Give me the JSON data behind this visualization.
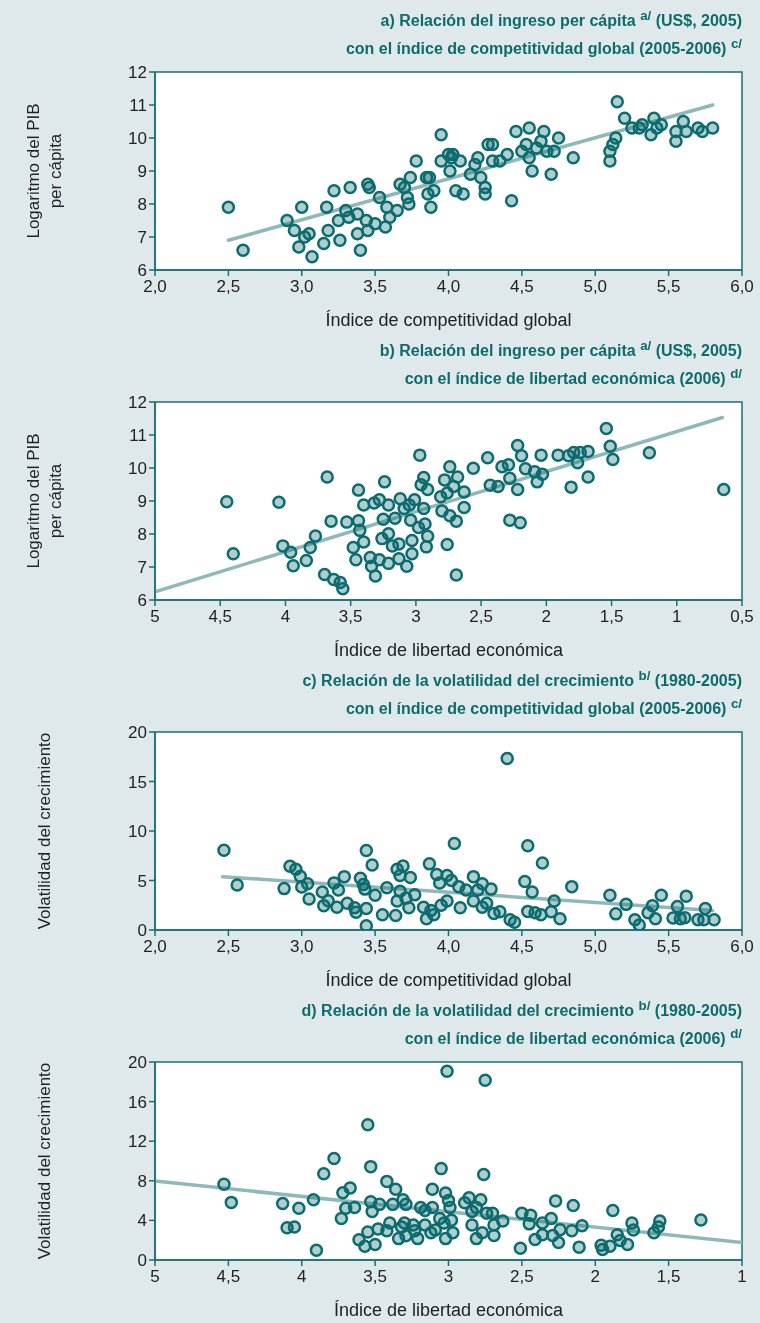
{
  "chart_data": [
    {
      "type": "scatter",
      "title": "a) Relación del ingreso per cápita $^{a/}$ (US$, 2005)\ncon el índice de competitividad global (2005-2006) $^{c/}$",
      "xlabel": "Índice de competitividad global",
      "ylabel": "Logaritmo del PIB\nper cápita",
      "xlim": [
        2,
        6
      ],
      "ylim": [
        6,
        12
      ],
      "xticks": [
        {
          "value": 2,
          "label": "2,0"
        },
        {
          "value": 2.5,
          "label": "2,5"
        },
        {
          "value": 3,
          "label": "3,0"
        },
        {
          "value": 3.5,
          "label": "3,5"
        },
        {
          "value": 4,
          "label": "4,0"
        },
        {
          "value": 4.5,
          "label": "4,5"
        },
        {
          "value": 5,
          "label": "5,0"
        },
        {
          "value": 5.5,
          "label": "5,5"
        },
        {
          "value": 6,
          "label": "6,0"
        }
      ],
      "yticks": [
        6,
        7,
        8,
        9,
        10,
        11,
        12
      ],
      "series": [
        {
          "marker": "circle",
          "color": "#0b6b6e",
          "x": [
            2.5,
            2.6,
            2.9,
            2.95,
            3.0,
            2.98,
            3.02,
            3.05,
            3.07,
            3.15,
            3.17,
            3.18,
            3.22,
            3.25,
            3.26,
            3.3,
            3.32,
            3.33,
            3.38,
            3.4,
            3.38,
            3.45,
            3.46,
            3.44,
            3.45,
            3.5,
            3.53,
            3.57,
            3.58,
            3.6,
            3.65,
            3.67,
            3.7,
            3.72,
            3.74,
            3.73,
            3.78,
            3.85,
            3.87,
            3.86,
            3.88,
            3.9,
            3.95,
            3.95,
            4.0,
            4.01,
            4.02,
            4.03,
            4.05,
            4.08,
            4.1,
            4.15,
            4.18,
            4.2,
            4.22,
            4.25,
            4.25,
            4.27,
            4.3,
            4.3,
            4.35,
            4.4,
            4.43,
            4.46,
            4.5,
            4.53,
            4.55,
            4.55,
            4.57,
            4.6,
            4.63,
            4.65,
            4.67,
            4.7,
            4.72,
            4.75,
            4.85,
            5.1,
            5.1,
            5.12,
            5.14,
            5.15,
            5.2,
            5.25,
            5.3,
            5.32,
            5.38,
            5.4,
            5.42,
            5.45,
            5.55,
            5.55,
            5.6,
            5.62,
            5.7,
            5.73,
            5.8
          ],
          "values": [
            7.9,
            6.6,
            7.5,
            7.2,
            7.9,
            6.7,
            7.0,
            7.1,
            6.4,
            6.8,
            7.9,
            7.2,
            8.4,
            7.5,
            6.9,
            7.8,
            7.6,
            8.5,
            7.1,
            6.6,
            7.7,
            8.6,
            8.5,
            7.5,
            7.2,
            7.4,
            8.2,
            7.3,
            7.9,
            7.6,
            7.8,
            8.6,
            8.5,
            8.2,
            8.8,
            8.0,
            9.3,
            8.8,
            8.8,
            8.3,
            7.9,
            8.4,
            10.1,
            9.3,
            9.5,
            9.0,
            9.4,
            9.5,
            8.4,
            9.3,
            8.3,
            8.9,
            9.2,
            9.4,
            8.8,
            8.5,
            8.3,
            9.8,
            9.8,
            9.3,
            9.3,
            9.5,
            8.1,
            10.2,
            9.6,
            9.8,
            10.3,
            9.4,
            9.0,
            9.7,
            9.9,
            10.2,
            9.6,
            8.9,
            9.6,
            10.0,
            9.4,
            9.3,
            9.6,
            9.8,
            10.0,
            11.1,
            10.6,
            10.3,
            10.3,
            10.4,
            10.1,
            10.6,
            10.3,
            10.4,
            10.2,
            9.9,
            10.5,
            10.2,
            10.3,
            10.2,
            10.3
          ]
        },
        {
          "type": "line",
          "color": "#8fb9b9",
          "x": [
            2.5,
            5.8
          ],
          "values": [
            6.9,
            11.0
          ]
        }
      ]
    },
    {
      "type": "scatter",
      "title": "b) Relación del ingreso per cápita $^{a/}$ (US$, 2005)\ncon el índice de libertad económica (2006) $^{d/}$",
      "xlabel": "Índice de libertad económica",
      "ylabel": "Logaritmo del PIB\nper cápita",
      "xlim": [
        5,
        0.5
      ],
      "ylim": [
        6,
        12
      ],
      "xticks": [
        5,
        {
          "value": 4.5,
          "label": "4,5"
        },
        4,
        {
          "value": 3.5,
          "label": "3,5"
        },
        3,
        {
          "value": 2.5,
          "label": "2,5"
        },
        2,
        {
          "value": 1.5,
          "label": "1,5"
        },
        1,
        {
          "value": 0.5,
          "label": "0,5"
        }
      ],
      "yticks": [
        6,
        7,
        8,
        9,
        10,
        11,
        12
      ],
      "series": [
        {
          "marker": "circle",
          "color": "#0b6b6e",
          "x": [
            4.45,
            4.4,
            4.05,
            4.02,
            3.96,
            3.94,
            3.84,
            3.81,
            3.77,
            3.7,
            3.68,
            3.65,
            3.63,
            3.58,
            3.56,
            3.53,
            3.48,
            3.46,
            3.44,
            3.44,
            3.43,
            3.4,
            3.4,
            3.35,
            3.34,
            3.31,
            3.32,
            3.28,
            3.28,
            3.25,
            3.24,
            3.21,
            3.21,
            3.26,
            3.21,
            3.18,
            3.16,
            3.13,
            3.13,
            3.12,
            3.09,
            3.07,
            3.05,
            3.04,
            3.03,
            3.03,
            3.01,
            2.98,
            2.97,
            2.96,
            2.94,
            2.94,
            2.93,
            2.92,
            2.91,
            2.91,
            2.81,
            2.8,
            2.78,
            2.76,
            2.76,
            2.74,
            2.74,
            2.71,
            2.69,
            2.69,
            2.68,
            2.63,
            2.63,
            2.56,
            2.45,
            2.43,
            2.37,
            2.34,
            2.29,
            2.28,
            2.28,
            2.22,
            2.22,
            2.2,
            2.19,
            2.16,
            2.09,
            2.07,
            2.04,
            2.03,
            1.91,
            1.83,
            1.81,
            1.79,
            1.76,
            1.74,
            1.68,
            1.68,
            1.54,
            1.51,
            1.49,
            1.21,
            0.64
          ],
          "values": [
            8.98,
            7.4,
            8.96,
            7.64,
            7.45,
            7.04,
            7.2,
            7.59,
            7.94,
            6.77,
            9.73,
            8.39,
            6.62,
            6.53,
            6.34,
            8.36,
            7.59,
            7.22,
            8.4,
            9.33,
            8.11,
            7.76,
            8.88,
            7.29,
            7.02,
            6.73,
            8.94,
            9.04,
            7.22,
            8.45,
            9.58,
            8.88,
            8.01,
            7.86,
            7.11,
            7.64,
            8.48,
            7.25,
            7.7,
            9.07,
            8.77,
            7.02,
            8.88,
            8.42,
            7.4,
            7.8,
            9.04,
            8.2,
            10.39,
            9.49,
            9.71,
            8.77,
            8.3,
            7.61,
            9.35,
            7.93,
            9.13,
            8.7,
            9.64,
            7.68,
            9.24,
            10.04,
            8.55,
            9.44,
            8.39,
            6.76,
            9.73,
            8.8,
            9.27,
            9.99,
            10.31,
            9.48,
            9.44,
            10.04,
            10.1,
            8.42,
            9.69,
            10.68,
            9.35,
            8.34,
            10.37,
            9.98,
            9.89,
            9.58,
            10.39,
            9.81,
            10.39,
            10.37,
            9.42,
            10.47,
            10.16,
            10.47,
            10.5,
            9.73,
            11.2,
            10.66,
            10.26,
            10.46,
            9.35
          ]
        },
        {
          "type": "line",
          "color": "#8fb9b9",
          "x": [
            5,
            0.65
          ],
          "values": [
            6.25,
            11.53
          ]
        }
      ]
    },
    {
      "type": "scatter",
      "title": "c) Relación de la volatilidad del crecimiento $^{b/}$ (1980-2005)\ncon el índice de competitividad global (2005-2006) $^{c/}$",
      "xlabel": "Índice de competitividad global",
      "ylabel": "Volatilidad del crecimiento",
      "xlim": [
        2,
        6
      ],
      "ylim": [
        0,
        20
      ],
      "xticks": [
        {
          "value": 2,
          "label": "2,0"
        },
        {
          "value": 2.5,
          "label": "2,5"
        },
        {
          "value": 3,
          "label": "3,0"
        },
        {
          "value": 3.5,
          "label": "3,5"
        },
        {
          "value": 4,
          "label": "4,0"
        },
        {
          "value": 4.5,
          "label": "4,5"
        },
        {
          "value": 5,
          "label": "5,0"
        },
        {
          "value": 5.5,
          "label": "5,5"
        },
        {
          "value": 6,
          "label": "6,0"
        }
      ],
      "yticks": [
        0,
        5,
        10,
        15,
        20
      ],
      "series": [
        {
          "marker": "circle",
          "color": "#0b6b6e",
          "x": [
            2.47,
            2.56,
            2.88,
            2.92,
            2.96,
            2.99,
            3.0,
            3.04,
            3.05,
            3.14,
            3.15,
            3.18,
            3.22,
            3.24,
            3.25,
            3.29,
            3.31,
            3.36,
            3.37,
            3.4,
            3.42,
            3.43,
            3.44,
            3.44,
            3.44,
            3.48,
            3.5,
            3.55,
            3.58,
            3.64,
            3.65,
            3.65,
            3.67,
            3.69,
            3.67,
            3.71,
            3.73,
            3.74,
            3.77,
            3.83,
            3.85,
            3.87,
            3.88,
            3.9,
            3.92,
            3.94,
            3.95,
            3.99,
            3.99,
            4.02,
            4.04,
            4.07,
            4.08,
            4.12,
            4.17,
            4.17,
            4.2,
            4.23,
            4.23,
            4.26,
            4.29,
            4.31,
            4.35,
            4.4,
            4.42,
            4.45,
            4.52,
            4.54,
            4.54,
            4.57,
            4.59,
            4.63,
            4.64,
            4.7,
            4.72,
            4.76,
            4.84,
            5.1,
            5.14,
            5.21,
            5.27,
            5.3,
            5.36,
            5.39,
            5.41,
            5.45,
            5.53,
            5.56,
            5.58,
            5.62,
            5.61,
            5.7,
            5.75,
            5.74,
            5.81
          ],
          "values": [
            8.06,
            4.55,
            4.18,
            6.43,
            6.14,
            5.43,
            4.34,
            4.68,
            3.13,
            3.84,
            2.46,
            2.96,
            4.76,
            2.3,
            4.05,
            5.39,
            2.71,
            2.25,
            1.8,
            5.22,
            4.59,
            4.13,
            8.02,
            2.17,
            0.42,
            6.56,
            3.51,
            1.54,
            4.26,
            1.46,
            6.14,
            2.92,
            3.92,
            6.47,
            5.51,
            3.22,
            2.25,
            5.3,
            3.55,
            2.3,
            1.13,
            6.68,
            1.96,
            1.54,
            5.6,
            4.76,
            2.51,
            5.51,
            2.92,
            5.01,
            8.73,
            4.38,
            2.25,
            4.05,
            5.39,
            2.92,
            4.05,
            4.68,
            2.3,
            2.71,
            4.13,
            1.67,
            1.84,
            17.33,
            1.04,
            0.79,
            4.89,
            8.52,
            1.88,
            3.84,
            1.75,
            1.54,
            6.76,
            1.84,
            2.92,
            1.13,
            4.38,
            3.51,
            1.63,
            2.59,
            1.04,
            0.5,
            1.75,
            2.46,
            1.13,
            3.51,
            1.21,
            2.38,
            1.13,
            3.42,
            1.25,
            1.04,
            2.17,
            1.04,
            1.04
          ]
        },
        {
          "type": "line",
          "color": "#8fb9b9",
          "x": [
            2.46,
            5.8
          ],
          "values": [
            5.39,
            1.96
          ]
        }
      ]
    },
    {
      "type": "scatter",
      "title": "d) Relación de la volatilidad del crecimiento $^{b/}$ (1980-2005)\ncon el índice de libertad económica (2006) $^{d/}$",
      "xlabel": "Índice de libertad económica",
      "ylabel": "Volatilidad del crecimiento",
      "xlim": [
        5,
        1
      ],
      "ylim": [
        0,
        20
      ],
      "xticks": [
        5,
        {
          "value": 4.5,
          "label": "4,5"
        },
        4,
        {
          "value": 3.5,
          "label": "3,5"
        },
        3,
        {
          "value": 2.5,
          "label": "2,5"
        },
        2,
        {
          "value": 1.5,
          "label": "1,5"
        },
        1
      ],
      "yticks": [
        0,
        4,
        8,
        12,
        16,
        20
      ],
      "series": [
        {
          "marker": "circle",
          "color": "#0b6b6e",
          "x": [
            4.53,
            4.48,
            4.13,
            4.1,
            4.05,
            4.02,
            3.92,
            3.9,
            3.85,
            3.78,
            3.73,
            3.72,
            3.7,
            3.67,
            3.64,
            3.61,
            3.57,
            3.55,
            3.55,
            3.53,
            3.53,
            3.52,
            3.5,
            3.48,
            3.47,
            3.42,
            3.42,
            3.4,
            3.38,
            3.36,
            3.34,
            3.32,
            3.31,
            3.3,
            3.29,
            3.29,
            3.24,
            3.23,
            3.21,
            3.19,
            3.16,
            3.16,
            3.12,
            3.11,
            3.11,
            3.09,
            3.06,
            3.05,
            3.03,
            3.02,
            3.02,
            3.01,
            3.0,
            2.99,
            2.98,
            2.97,
            2.89,
            2.86,
            2.84,
            2.84,
            2.81,
            2.81,
            2.78,
            2.77,
            2.76,
            2.75,
            2.74,
            2.7,
            2.69,
            2.69,
            2.63,
            2.51,
            2.5,
            2.45,
            2.44,
            2.41,
            2.36,
            2.36,
            2.3,
            2.29,
            2.27,
            2.25,
            2.24,
            2.16,
            2.15,
            2.11,
            2.09,
            1.96,
            1.95,
            1.9,
            1.88,
            1.85,
            1.83,
            1.78,
            1.75,
            1.74,
            1.6,
            1.57,
            1.56,
            1.28
          ],
          "values": [
            7.66,
            5.82,
            5.7,
            3.26,
            3.34,
            5.23,
            6.09,
            0.98,
            8.72,
            10.26,
            4.2,
            6.8,
            5.23,
            7.27,
            5.3,
            2.04,
            1.38,
            13.67,
            2.83,
            9.43,
            5.89,
            4.91,
            1.57,
            3.14,
            5.62,
            7.94,
            2.95,
            3.73,
            5.62,
            7.15,
            2.16,
            3.34,
            6.09,
            3.73,
            2.44,
            5.62,
            3.54,
            2.95,
            2.16,
            5.3,
            4.99,
            3.54,
            2.75,
            7.15,
            5.3,
            3.03,
            4.2,
            9.23,
            3.73,
            2.16,
            6.76,
            19.06,
            6.01,
            5.3,
            4.01,
            2.75,
            5.78,
            6.29,
            4.91,
            3.54,
            2.16,
            5.3,
            6.09,
            2.75,
            8.64,
            18.15,
            4.72,
            4.72,
            2.48,
            3.54,
            3.93,
            1.18,
            4.72,
            3.65,
            4.52,
            2.08,
            2.55,
            3.73,
            4.2,
            2.48,
            5.97,
            1.77,
            3.06,
            2.95,
            5.5,
            1.3,
            3.46,
            1.49,
            1.06,
            1.38,
            4.99,
            2.55,
            1.96,
            1.57,
            3.73,
            3.03,
            2.75,
            3.34,
            3.93,
            4.05
          ]
        },
        {
          "type": "line",
          "color": "#8fb9b9",
          "x": [
            5,
            1
          ],
          "values": [
            7.98,
            1.77
          ]
        }
      ]
    }
  ]
}
